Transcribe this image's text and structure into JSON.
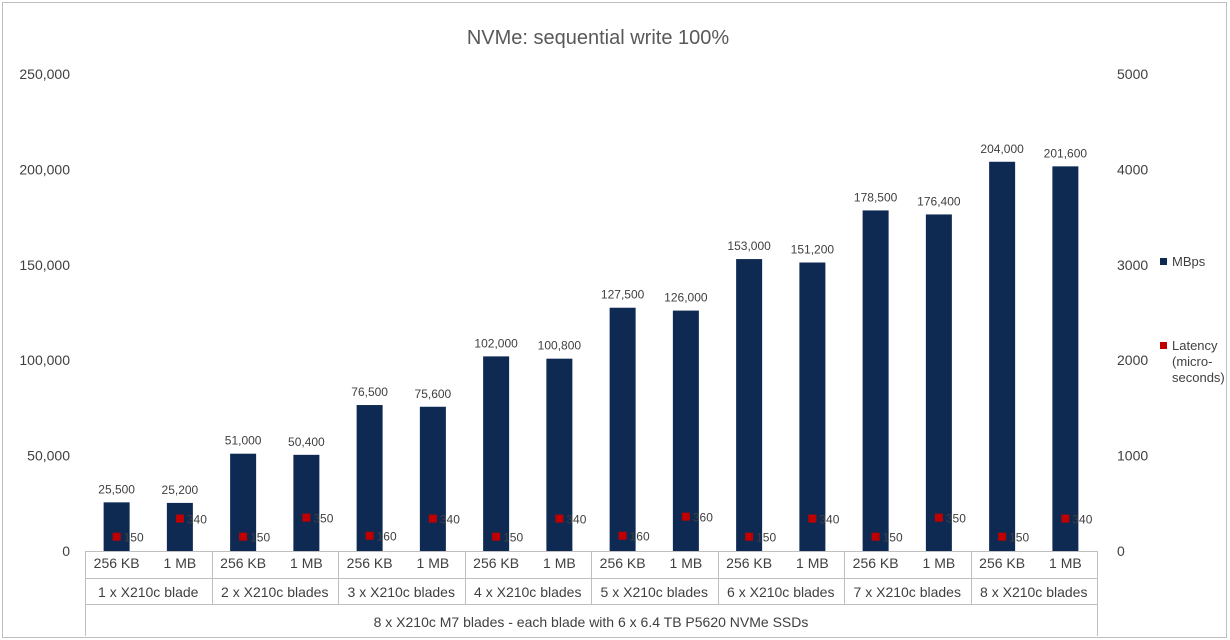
{
  "chart_data": {
    "type": "bar",
    "title": "NVMe: sequential write 100%",
    "xlabel": "8 x X210c M7 blades - each blade with 6 x 6.4 TB P5620 NVMe SSDs",
    "groups": [
      "1 x X210c blade",
      "2 x X210c blades",
      "3 x X210c blades",
      "4 x X210c blades",
      "5 x X210c blades",
      "6 x X210c blades",
      "7 x X210c blades",
      "8 x X210c blades"
    ],
    "subcategories": [
      "256 KB",
      "1 MB"
    ],
    "categories": [
      "256 KB",
      "1 MB",
      "256 KB",
      "1 MB",
      "256 KB",
      "1 MB",
      "256 KB",
      "1 MB",
      "256 KB",
      "1 MB",
      "256 KB",
      "1 MB",
      "256 KB",
      "1 MB",
      "256 KB",
      "1 MB"
    ],
    "series": [
      {
        "name": "MBps",
        "axis": "left",
        "type": "bar",
        "color": "#0e2a53",
        "values": [
          25500,
          25200,
          51000,
          50400,
          76500,
          75600,
          102000,
          100800,
          127500,
          126000,
          153000,
          151200,
          178500,
          176400,
          204000,
          201600
        ],
        "labels": [
          "25,500",
          "25,200",
          "51,000",
          "50,400",
          "76,500",
          "75,600",
          "102,000",
          "100,800",
          "127,500",
          "126,000",
          "153,000",
          "151,200",
          "178,500",
          "176,400",
          "204,000",
          "201,600"
        ]
      },
      {
        "name": "Latency (micro-seconds)",
        "legend_lines": [
          "Latency",
          "(micro-",
          "seconds)"
        ],
        "axis": "right",
        "type": "scatter",
        "color": "#c00000",
        "values": [
          150,
          340,
          150,
          350,
          160,
          340,
          150,
          340,
          160,
          360,
          150,
          340,
          150,
          350,
          150,
          340
        ],
        "labels": [
          "150",
          "340",
          "150",
          "350",
          "160",
          "340",
          "150",
          "340",
          "160",
          "360",
          "150",
          "340",
          "150",
          "350",
          "150",
          "340"
        ]
      }
    ],
    "ylim": [
      0,
      250000
    ],
    "yticks": [
      "0",
      "50,000",
      "100,000",
      "150,000",
      "200,000",
      "250,000"
    ],
    "y2lim": [
      0,
      5000
    ],
    "y2ticks": [
      "0",
      "1000",
      "2000",
      "3000",
      "4000",
      "5000"
    ],
    "grid": false,
    "legend_position": "right"
  }
}
